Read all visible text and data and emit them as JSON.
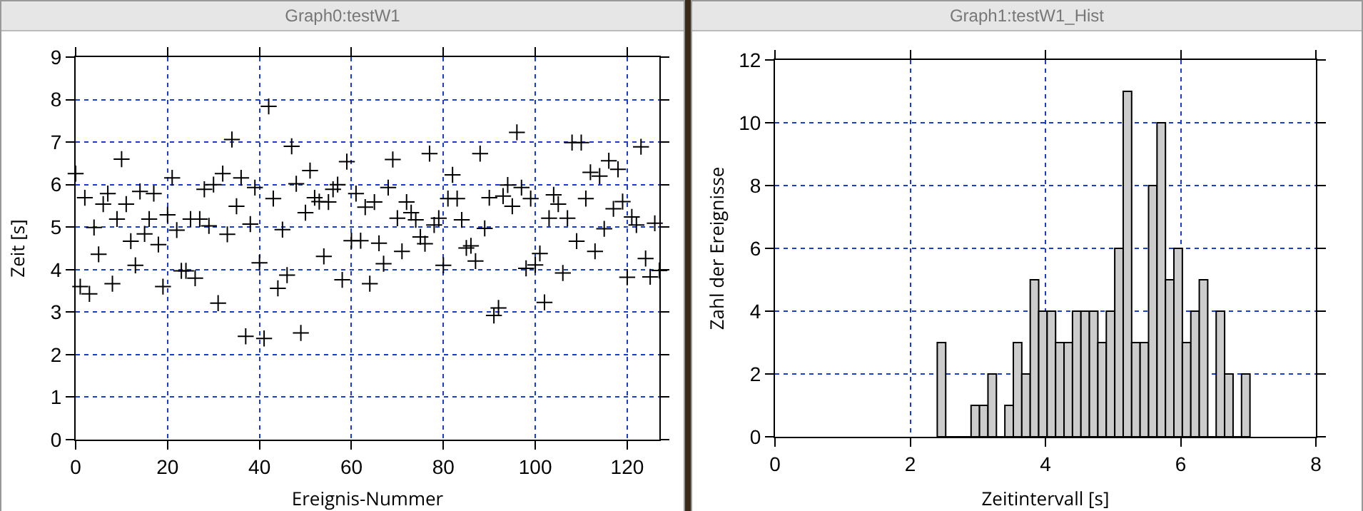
{
  "chart_data": [
    {
      "type": "scatter",
      "title": "Graph0:testW1",
      "xlabel": "Ereignis-Nummer",
      "ylabel": "Zeit [s]",
      "x": [
        0,
        1,
        2,
        3,
        4,
        5,
        6,
        7,
        8,
        9,
        10,
        11,
        12,
        13,
        14,
        15,
        16,
        17,
        18,
        19,
        20,
        21,
        22,
        23,
        24,
        25,
        26,
        27,
        28,
        29,
        30,
        31,
        32,
        33,
        34,
        35,
        36,
        37,
        38,
        39,
        40,
        41,
        42,
        43,
        44,
        45,
        46,
        47,
        48,
        49,
        50,
        51,
        52,
        53,
        54,
        55,
        56,
        57,
        58,
        59,
        60,
        61,
        62,
        63,
        64,
        65,
        66,
        67,
        68,
        69,
        70,
        71,
        72,
        73,
        74,
        75,
        76,
        77,
        78,
        79,
        80,
        81,
        82,
        83,
        84,
        85,
        86,
        87,
        88,
        89,
        90,
        91,
        92,
        93,
        94,
        95,
        96,
        97,
        98,
        99,
        100,
        101,
        102,
        103,
        104,
        105,
        106,
        107,
        108,
        109,
        110,
        111,
        112,
        113,
        114,
        115,
        116,
        117,
        118,
        119,
        120,
        121,
        122,
        123,
        124,
        125,
        126,
        127
      ],
      "values": [
        6.26,
        3.6,
        5.69,
        3.43,
        4.99,
        4.36,
        5.54,
        5.79,
        3.67,
        5.19,
        6.6,
        5.54,
        4.67,
        4.1,
        5.84,
        4.84,
        5.19,
        5.79,
        4.59,
        3.6,
        5.29,
        6.16,
        4.93,
        3.97,
        3.97,
        5.19,
        3.8,
        5.19,
        5.89,
        5.03,
        6.0,
        3.21,
        6.26,
        4.83,
        7.06,
        5.49,
        6.16,
        2.43,
        5.07,
        5.93,
        4.16,
        2.38,
        7.84,
        5.67,
        3.56,
        4.94,
        3.87,
        6.9,
        6.02,
        2.51,
        5.34,
        6.33,
        5.69,
        5.6,
        4.31,
        5.59,
        5.89,
        6.0,
        3.76,
        6.54,
        4.68,
        5.79,
        4.68,
        5.47,
        3.67,
        5.59,
        4.62,
        4.14,
        5.93,
        6.59,
        5.21,
        4.43,
        5.59,
        5.34,
        5.17,
        4.77,
        4.61,
        6.73,
        5.05,
        5.21,
        4.1,
        5.67,
        6.23,
        5.67,
        5.17,
        4.51,
        4.56,
        4.2,
        6.73,
        4.97,
        5.69,
        2.92,
        3.1,
        5.73,
        5.99,
        5.49,
        7.23,
        5.93,
        4.03,
        5.67,
        4.11,
        4.38,
        3.23,
        5.21,
        5.76,
        5.54,
        3.92,
        5.21,
        6.99,
        4.67,
        6.99,
        5.67,
        6.29,
        4.43,
        6.2,
        4.96,
        6.56,
        5.43,
        6.36,
        5.6,
        3.82,
        5.24,
        5.05,
        6.89,
        4.26,
        3.83,
        5.09,
        3.98
      ],
      "color": "#000000",
      "marker": "cross",
      "xlim": [
        0,
        127
      ],
      "xticks": [
        0,
        20,
        40,
        60,
        80,
        100,
        120
      ],
      "ylim": [
        0,
        9
      ],
      "yticks": [
        0,
        1,
        2,
        3,
        4,
        5,
        6,
        7,
        8,
        9
      ],
      "grid": true
    },
    {
      "type": "histogram",
      "title": "Graph1:testW1_Hist",
      "xlabel": "Zeitintervall [s]",
      "ylabel": "Zahl der Ereignisse",
      "bins": [
        2.4,
        2.525,
        2.65,
        2.775,
        2.9,
        3.025,
        3.15,
        3.275,
        3.4,
        3.525,
        3.65,
        3.775,
        3.9,
        4.025,
        4.15,
        4.275,
        4.4,
        4.525,
        4.65,
        4.775,
        4.9,
        5.025,
        5.15,
        5.275,
        5.4,
        5.525,
        5.65,
        5.775,
        5.9,
        6.025,
        6.15,
        6.275,
        6.4,
        6.525,
        6.65,
        6.775,
        6.9,
        7.025
      ],
      "values": [
        3,
        0,
        0,
        0,
        1,
        1,
        2,
        0,
        1,
        3,
        2,
        5,
        4,
        4,
        3,
        3,
        4,
        4,
        4,
        3,
        4,
        6,
        11,
        3,
        3,
        8,
        10,
        5,
        6,
        3,
        4,
        5,
        0,
        4,
        2,
        0,
        2
      ],
      "color": "#cccccc",
      "xlim": [
        0,
        8
      ],
      "xticks": [
        0,
        2,
        4,
        6,
        8
      ],
      "ylim": [
        0,
        12
      ],
      "yticks": [
        0,
        2,
        4,
        6,
        8,
        10,
        12
      ],
      "grid": true
    }
  ]
}
